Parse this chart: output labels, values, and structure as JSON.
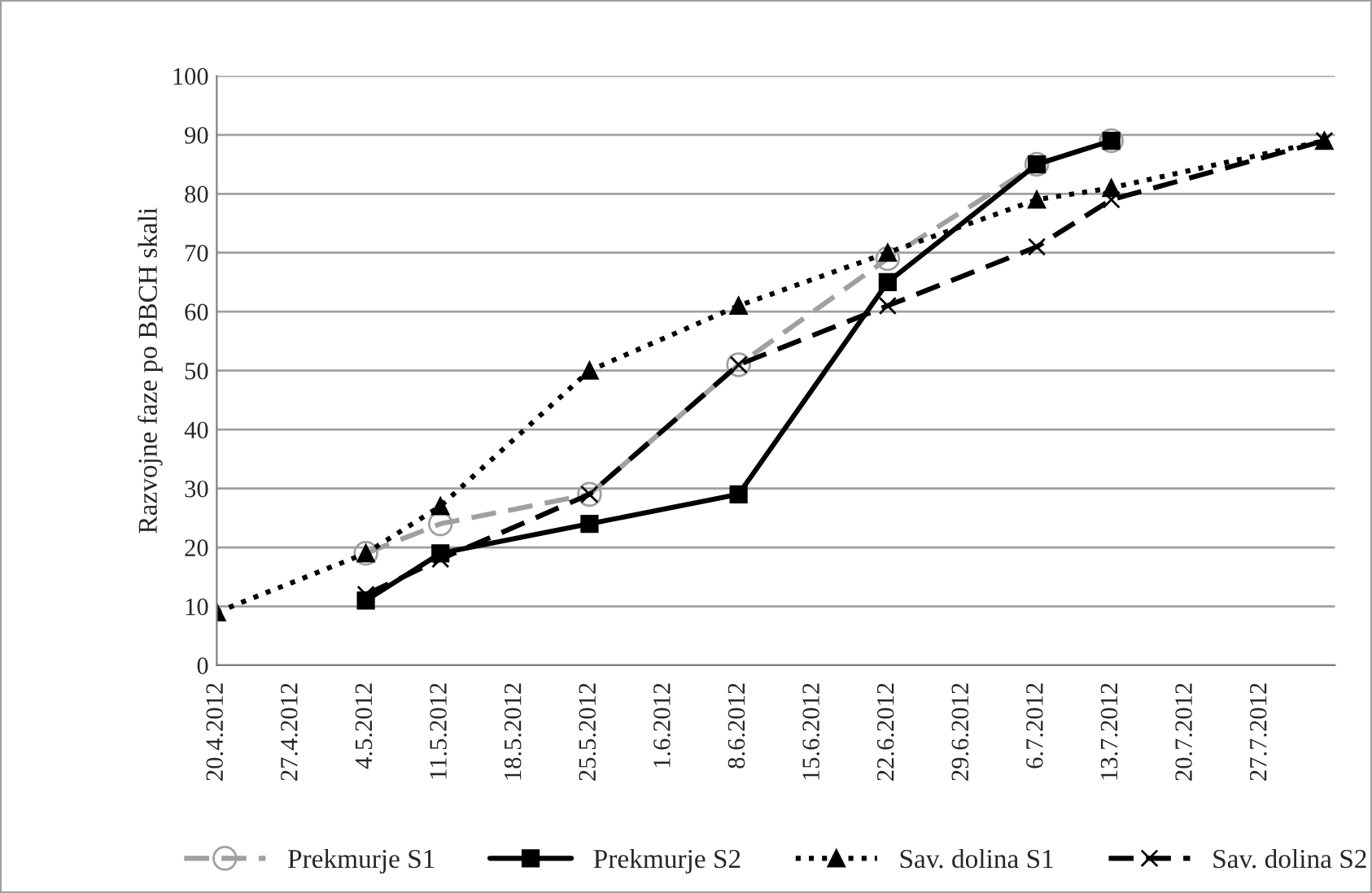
{
  "chart_data": {
    "type": "line",
    "ylabel": "Razvojne faze po BBCH skali",
    "ylim": [
      0,
      100
    ],
    "yticks": [
      0,
      10,
      20,
      30,
      40,
      50,
      60,
      70,
      80,
      90,
      100
    ],
    "xlim": [
      "2012-04-20",
      "2012-08-03"
    ],
    "xticks": [
      {
        "value": "2012-04-20",
        "label": "20.4.2012"
      },
      {
        "value": "2012-04-27",
        "label": "27.4.2012"
      },
      {
        "value": "2012-05-04",
        "label": "4.5.2012"
      },
      {
        "value": "2012-05-11",
        "label": "11.5.2012"
      },
      {
        "value": "2012-05-18",
        "label": "18.5.2012"
      },
      {
        "value": "2012-05-25",
        "label": "25.5.2012"
      },
      {
        "value": "2012-06-01",
        "label": "1.6.2012"
      },
      {
        "value": "2012-06-08",
        "label": "8.6.2012"
      },
      {
        "value": "2012-06-15",
        "label": "15.6.2012"
      },
      {
        "value": "2012-06-22",
        "label": "22.6.2012"
      },
      {
        "value": "2012-06-29",
        "label": "29.6.2012"
      },
      {
        "value": "2012-07-06",
        "label": "6.7.2012"
      },
      {
        "value": "2012-07-13",
        "label": "13.7.2012"
      },
      {
        "value": "2012-07-20",
        "label": "20.7.2012"
      },
      {
        "value": "2012-07-27",
        "label": "27.7.2012"
      }
    ],
    "grid": "y",
    "legend": "bottom",
    "series": [
      {
        "name": "Prekmurje S1",
        "color": "#a0a0a0",
        "marker": "circle",
        "line_style": "dashed",
        "x": [
          "2012-05-04",
          "2012-05-11",
          "2012-05-25",
          "2012-06-08",
          "2012-06-22",
          "2012-07-06",
          "2012-07-13"
        ],
        "values": [
          19,
          24,
          29,
          51,
          69,
          85,
          89
        ]
      },
      {
        "name": "Prekmurje S2",
        "color": "#000000",
        "marker": "square",
        "line_style": "solid",
        "x": [
          "2012-05-04",
          "2012-05-11",
          "2012-05-25",
          "2012-06-08",
          "2012-06-22",
          "2012-07-06",
          "2012-07-13"
        ],
        "values": [
          11,
          19,
          24,
          29,
          65,
          85,
          89
        ]
      },
      {
        "name": "Sav. dolina S1",
        "color": "#000000",
        "marker": "triangle",
        "line_style": "dotted",
        "x": [
          "2012-04-20",
          "2012-05-04",
          "2012-05-11",
          "2012-05-25",
          "2012-06-08",
          "2012-06-22",
          "2012-07-06",
          "2012-07-13",
          "2012-08-02"
        ],
        "values": [
          9,
          19,
          27,
          50,
          61,
          70,
          79,
          81,
          89
        ]
      },
      {
        "name": "Sav. dolina S2",
        "color": "#000000",
        "marker": "cross",
        "line_style": "dashed",
        "x": [
          "2012-05-04",
          "2012-05-11",
          "2012-05-25",
          "2012-06-08",
          "2012-06-22",
          "2012-07-06",
          "2012-07-13",
          "2012-08-02"
        ],
        "values": [
          12,
          18,
          29,
          51,
          61,
          71,
          79,
          89
        ]
      }
    ]
  }
}
